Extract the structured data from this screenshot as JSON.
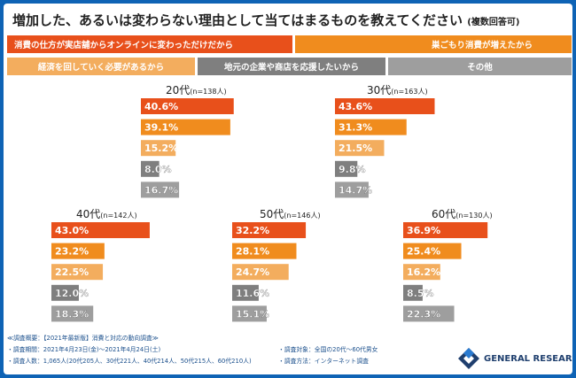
{
  "title_main": "増加した、あるいは変わらない理由として当てはまるものを教えてください",
  "title_note": "(複数回答可)",
  "colors": {
    "series": [
      "#e8501b",
      "#f08c1e",
      "#f3ad5e",
      "#7f7f7f",
      "#9e9e9e"
    ]
  },
  "legend": [
    "消費の仕方が実店舗からオンラインに変わっただけだから",
    "巣ごもり消費が増えたから",
    "経済を回していく必要があるから",
    "地元の企業や商店を応援したいから",
    "その他"
  ],
  "chart_data": {
    "type": "bar",
    "orientation": "horizontal",
    "series_names": [
      "消費の仕方が実店舗からオンラインに変わっただけだから",
      "巣ごもり消費が増えたから",
      "経済を回していく必要があるから",
      "地元の企業や商店を応援したいから",
      "その他"
    ],
    "unit": "%",
    "xlim": [
      0,
      50
    ],
    "groups": [
      {
        "label": "20代",
        "n": "(n=138人)",
        "values": [
          40.6,
          39.1,
          15.2,
          8.0,
          16.7
        ],
        "value_labels": [
          "40.6%",
          "39.1%",
          "15.2%",
          "8.0%",
          "16.7%"
        ]
      },
      {
        "label": "30代",
        "n": "(n=163人)",
        "values": [
          43.6,
          31.3,
          21.5,
          9.8,
          14.7
        ],
        "value_labels": [
          "43.6%",
          "31.3%",
          "21.5%",
          "9.8%",
          "14.7%"
        ]
      },
      {
        "label": "40代",
        "n": "(n=142人)",
        "values": [
          43.0,
          23.2,
          22.5,
          12.0,
          18.3
        ],
        "value_labels": [
          "43.0%",
          "23.2%",
          "22.5%",
          "12.0%",
          "18.3%"
        ]
      },
      {
        "label": "50代",
        "n": "(n=146人)",
        "values": [
          32.2,
          28.1,
          24.7,
          11.6,
          15.1
        ],
        "value_labels": [
          "32.2%",
          "28.1%",
          "24.7%",
          "11.6%",
          "15.1%"
        ]
      },
      {
        "label": "60代",
        "n": "(n=130人)",
        "values": [
          36.9,
          25.4,
          16.2,
          8.5,
          22.3
        ],
        "value_labels": [
          "36.9%",
          "25.4%",
          "16.2%",
          "8.5%",
          "22.3%"
        ]
      }
    ]
  },
  "footer": {
    "survey_heading": "≪調査概要：【2021年最新版】消費と対応の動向調査≫",
    "period": "・調査期間：2021年4月23日(金)～2021年4月24日(土)",
    "respondents": "・調査人数：1,065人(20代205人、30代221人、40代214人、50代215人、60代210人)",
    "target": "・調査対象：全国の20代～60代男女",
    "method": "・調査方法：インターネット調査"
  },
  "logo_text": "GENERAL RESEARCH"
}
